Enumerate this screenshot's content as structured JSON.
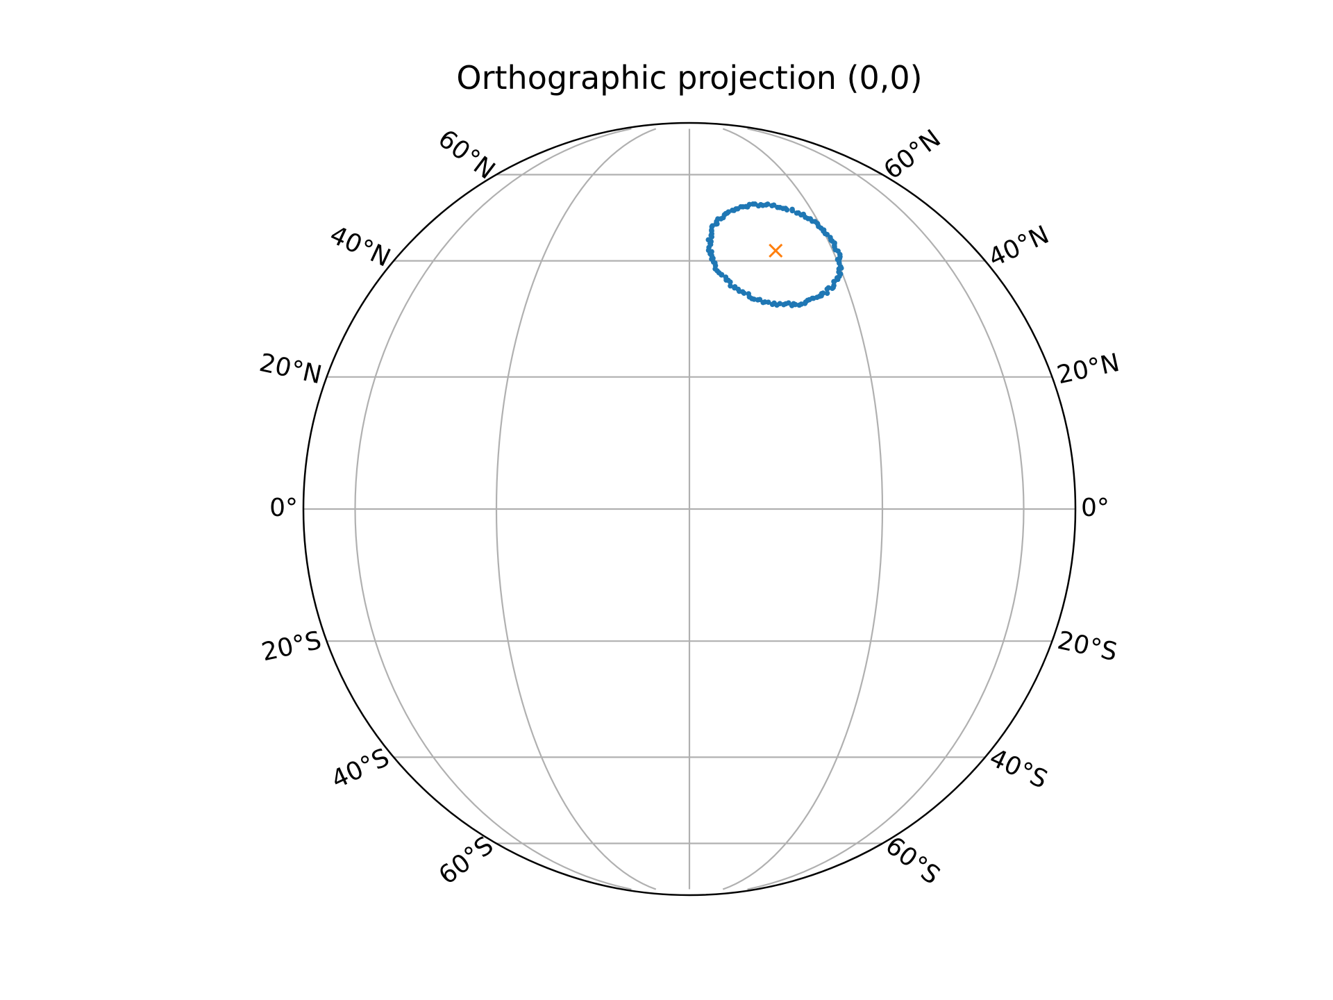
{
  "chart_data": {
    "type": "scatter",
    "title": "Orthographic projection (0,0)",
    "projection": "orthographic",
    "central_longitude": 0,
    "central_latitude": 0,
    "grid": true,
    "meridians_deg": [
      -90,
      -60,
      -30,
      0,
      30,
      60,
      90
    ],
    "parallels_deg": [
      -60,
      -40,
      -20,
      0,
      20,
      40,
      60
    ],
    "lat_tick_labels": {
      "left": [
        "60°N",
        "40°N",
        "20°N",
        "0°",
        "20°S",
        "40°S",
        "60°S"
      ],
      "right": [
        "60°N",
        "40°N",
        "20°N",
        "0°",
        "20°S",
        "40°S",
        "60°S"
      ]
    },
    "series": [
      {
        "marker": "dot",
        "color": "#1f77b4",
        "description_of_shape": "ring of points around the marker",
        "center_lon": 17.5,
        "center_lat": 42,
        "radius_deg": 10,
        "count": 150
      },
      {
        "marker": "x",
        "color": "#ff7f0e",
        "points": [
          {
            "lon": 17.5,
            "lat": 42
          }
        ]
      }
    ],
    "colors": {
      "grid": "#b0b0b0",
      "outline": "#000000"
    }
  }
}
